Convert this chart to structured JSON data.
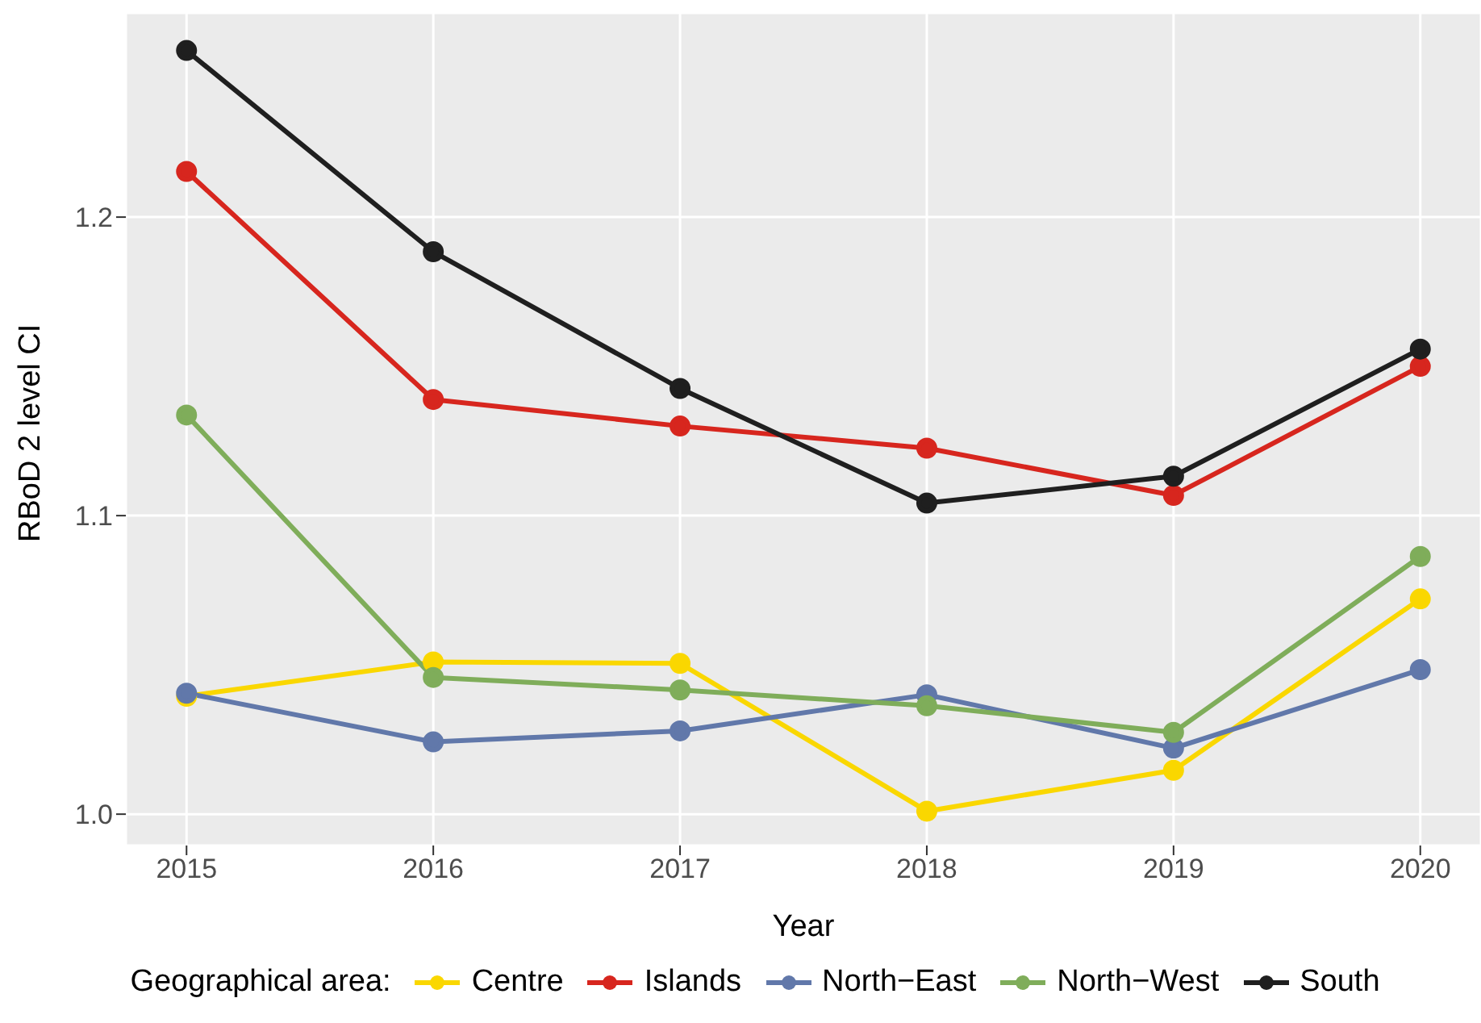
{
  "chart_data": {
    "type": "line",
    "xlabel": "Year",
    "ylabel": "RBoD 2 level CI",
    "legend_title": "Geographical area:",
    "x": [
      2015,
      2016,
      2017,
      2018,
      2019,
      2020
    ],
    "series": [
      {
        "name": "Centre",
        "color": "#fad700",
        "values": [
          1.0395,
          1.051,
          1.0505,
          1.001,
          1.0147,
          1.0721
        ]
      },
      {
        "name": "Islands",
        "color": "#d7261e",
        "values": [
          1.2153,
          1.1389,
          1.13,
          1.1226,
          1.1068,
          1.15
        ]
      },
      {
        "name": "North−East",
        "color": "#6178aa",
        "values": [
          1.0405,
          1.0242,
          1.0279,
          1.04,
          1.0221,
          1.0484
        ]
      },
      {
        "name": "North−West",
        "color": "#7fad5a",
        "values": [
          1.1337,
          1.0458,
          1.0416,
          1.0363,
          1.0274,
          1.0863
        ]
      },
      {
        "name": "South",
        "color": "#1f1f1f",
        "values": [
          1.2558,
          1.1884,
          1.1426,
          1.1042,
          1.1132,
          1.1558
        ]
      }
    ],
    "xlim": [
      2014.754,
      2020.246
    ],
    "xticks": [
      2015,
      2016,
      2017,
      2018,
      2019,
      2020
    ],
    "ylim": [
      0.9895,
      1.2684
    ],
    "yticks": [
      {
        "value": 1.0,
        "label": "1.0"
      },
      {
        "value": 1.1,
        "label": "1.1"
      },
      {
        "value": 1.2,
        "label": "1.2"
      }
    ],
    "grid": true,
    "legend": "bottom",
    "marker": "circle",
    "line_style": "solid"
  }
}
